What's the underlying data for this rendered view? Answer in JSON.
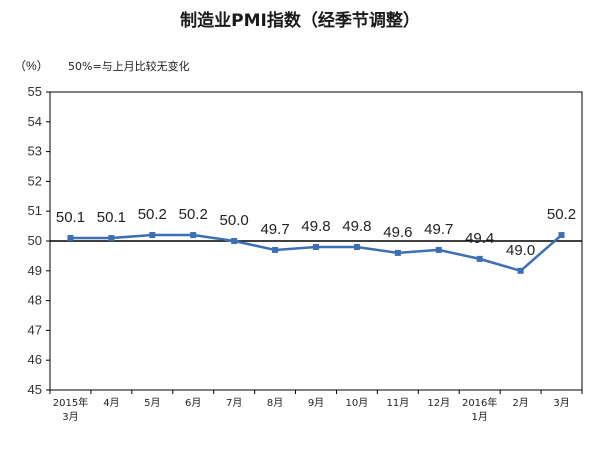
{
  "chart_data": {
    "type": "line",
    "title": "制造业PMI指数（经季节调整）",
    "ylabel": "（%）",
    "note": "50%=与上月比较无变化",
    "ylim": [
      45,
      55
    ],
    "yticks": [
      45,
      46,
      47,
      48,
      49,
      50,
      51,
      52,
      53,
      54,
      55
    ],
    "categories": [
      [
        "2015年",
        "3月"
      ],
      [
        "4月"
      ],
      [
        "5月"
      ],
      [
        "6月"
      ],
      [
        "7月"
      ],
      [
        "8月"
      ],
      [
        "9月"
      ],
      [
        "10月"
      ],
      [
        "11月"
      ],
      [
        "12月"
      ],
      [
        "2016年",
        "1月"
      ],
      [
        "2月"
      ],
      [
        "3月"
      ]
    ],
    "values": [
      50.1,
      50.1,
      50.2,
      50.2,
      50.0,
      49.7,
      49.8,
      49.8,
      49.6,
      49.7,
      49.4,
      49.0,
      50.2
    ],
    "data_labels": [
      "50.1",
      "50.1",
      "50.2",
      "50.2",
      "50.0",
      "49.7",
      "49.8",
      "49.8",
      "49.6",
      "49.7",
      "49.4",
      "49.0",
      "50.2"
    ],
    "series_color": "#3c6fb4",
    "axis_color": "#000000",
    "reference_value": 50,
    "grid": false
  }
}
